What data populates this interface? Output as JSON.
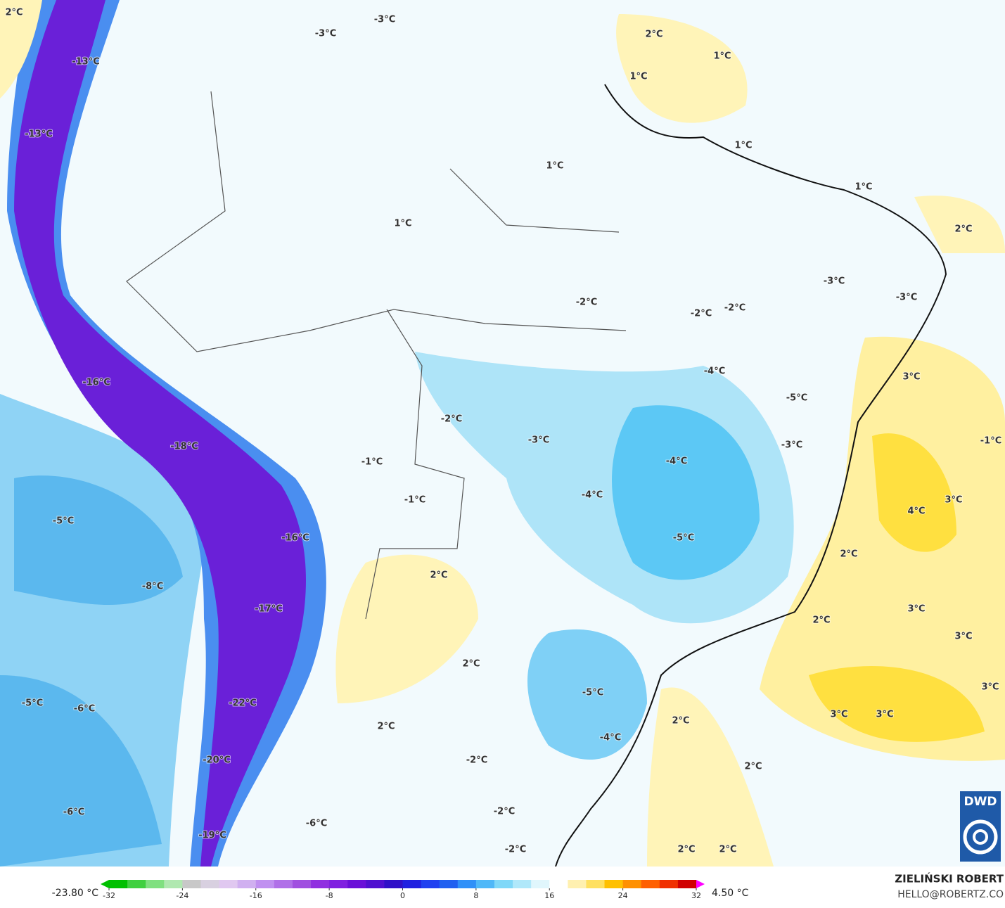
{
  "map": {
    "labels": [
      "2°C",
      "-3°C",
      "-3°C",
      "-13°C",
      "-13°C",
      "2°C",
      "1°C",
      "1°C",
      "1°C",
      "1°C",
      "1°C",
      "2°C",
      "1°C",
      "-3°C",
      "-3°C",
      "-2°C",
      "-2°C",
      "-2°C",
      "-4°C",
      "3°C",
      "-16°C",
      "-5°C",
      "-2°C",
      "-3°C",
      "-3°C",
      "-1°C",
      "-18°C",
      "-4°C",
      "-1°C",
      "-4°C",
      "-1°C",
      "3°C",
      "4°C",
      "-5°C",
      "-16°C",
      "-5°C",
      "2°C",
      "2°C",
      "-8°C",
      "-17°C",
      "3°C",
      "2°C",
      "3°C",
      "2°C",
      "3°C",
      "-5°C",
      "-6°C",
      "-22°C",
      "-5°C",
      "3°C",
      "3°C",
      "2°C",
      "2°C",
      "-4°C",
      "-20°C",
      "-2°C",
      "2°C",
      "-6°C",
      "-2°C",
      "-6°C",
      "-19°C",
      "2°C",
      "2°C",
      "-2°C"
    ],
    "logo": "DWD",
    "author": "ZIELIŃSKI ROBERT",
    "email": "HELLO@ROBERTZ.CO"
  },
  "colorbar": {
    "min_label": "-23.80 °C",
    "max_label": "4.50 °C",
    "lim": [
      -32,
      32
    ],
    "ticks": [
      -32,
      -24,
      -16,
      -8,
      0,
      8,
      16,
      24,
      32
    ],
    "colors": [
      "#00c000",
      "#40d040",
      "#80e080",
      "#b0e8b0",
      "#c8c8c8",
      "#d8d0e0",
      "#e0c8f0",
      "#d0b0f0",
      "#c090f0",
      "#b070e8",
      "#a050e0",
      "#9030e0",
      "#8020e0",
      "#6a10d8",
      "#5010d0",
      "#3010c8",
      "#2020e0",
      "#2040f0",
      "#2060f0",
      "#3090f8",
      "#50b8f8",
      "#80d8f8",
      "#b0e8fa",
      "#e0f6fc",
      "#ffffff",
      "#fff0b0",
      "#ffe060",
      "#ffc000",
      "#ff9000",
      "#ff6000",
      "#f03000",
      "#d00000"
    ]
  }
}
